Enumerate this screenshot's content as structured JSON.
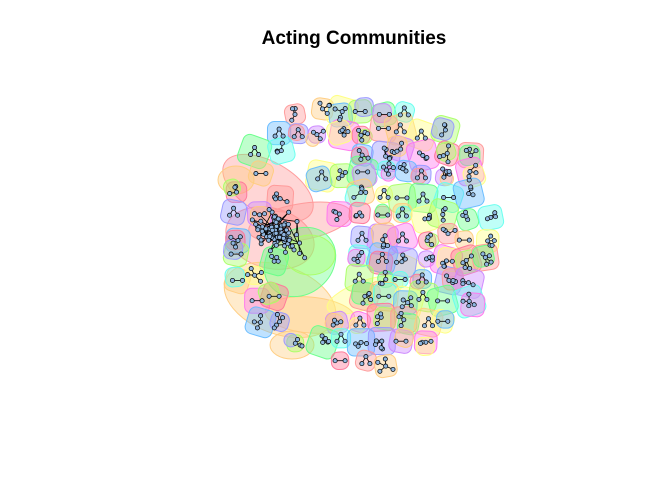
{
  "title": "Acting Communities",
  "palette": [
    "#ff9999",
    "#ffcc80",
    "#ffff80",
    "#aaff66",
    "#66ff88",
    "#66ffee",
    "#66bbff",
    "#9999ff",
    "#cc88ff",
    "#ff77ee",
    "#ff7799"
  ],
  "node_fill": "#8fb6e0",
  "node_stroke": "#000000",
  "edge_color": "#000000"
}
